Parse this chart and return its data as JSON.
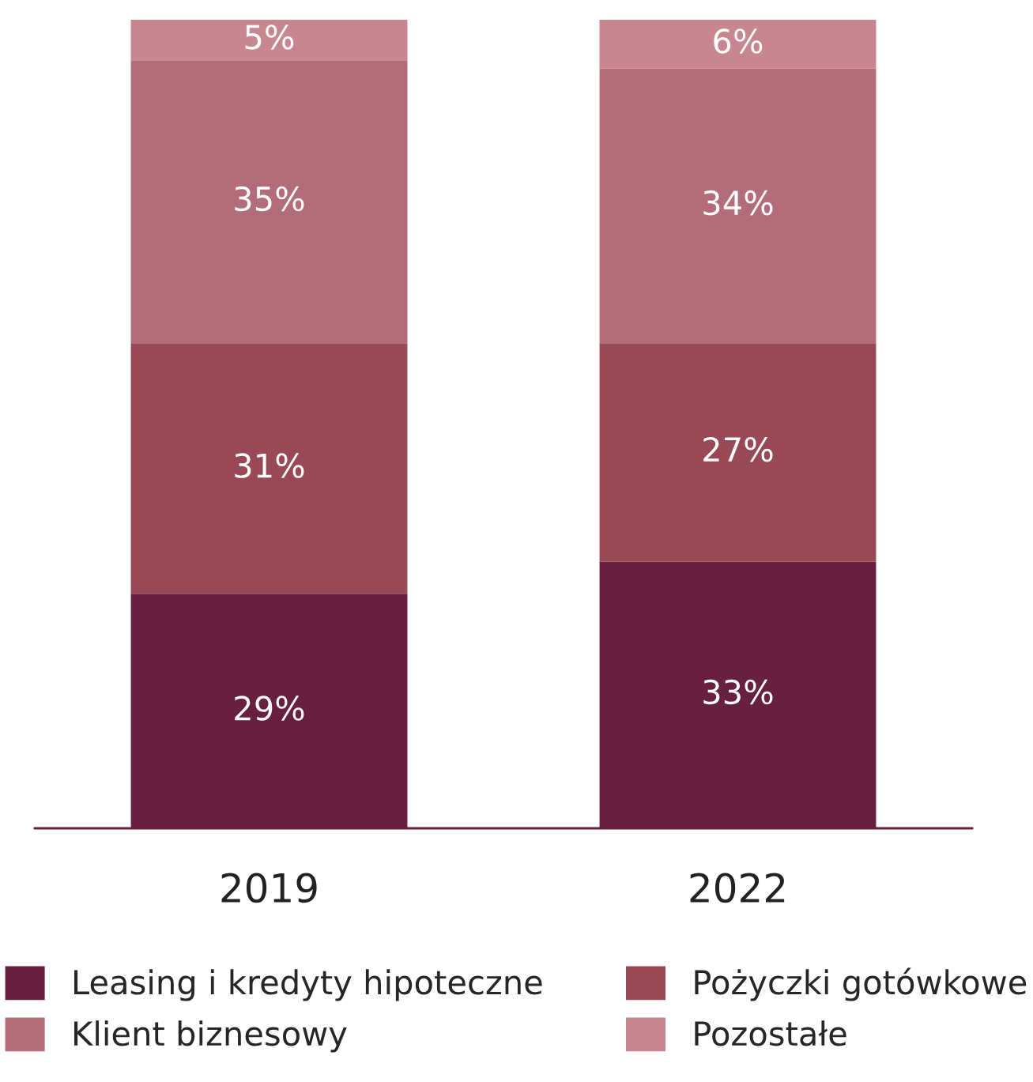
{
  "chart_data": {
    "type": "bar",
    "stacked": true,
    "categories": [
      "2019",
      "2022"
    ],
    "series": [
      {
        "name": "Leasing i kredyty hipoteczne",
        "color": "#67203f",
        "values": [
          29,
          33
        ],
        "value_labels": [
          "29%",
          "33%"
        ]
      },
      {
        "name": "Pożyczki gotówkowe",
        "color": "#994956",
        "values": [
          31,
          27
        ],
        "value_labels": [
          "31%",
          "27%"
        ]
      },
      {
        "name": "Klient biznesowy",
        "color": "#b36d7a",
        "values": [
          35,
          34
        ],
        "value_labels": [
          "35%",
          "34%"
        ]
      },
      {
        "name": "Pozostałe",
        "color": "#c78690",
        "values": [
          5,
          6
        ],
        "value_labels": [
          "5%",
          "6%"
        ]
      }
    ],
    "legend": "bottom"
  }
}
